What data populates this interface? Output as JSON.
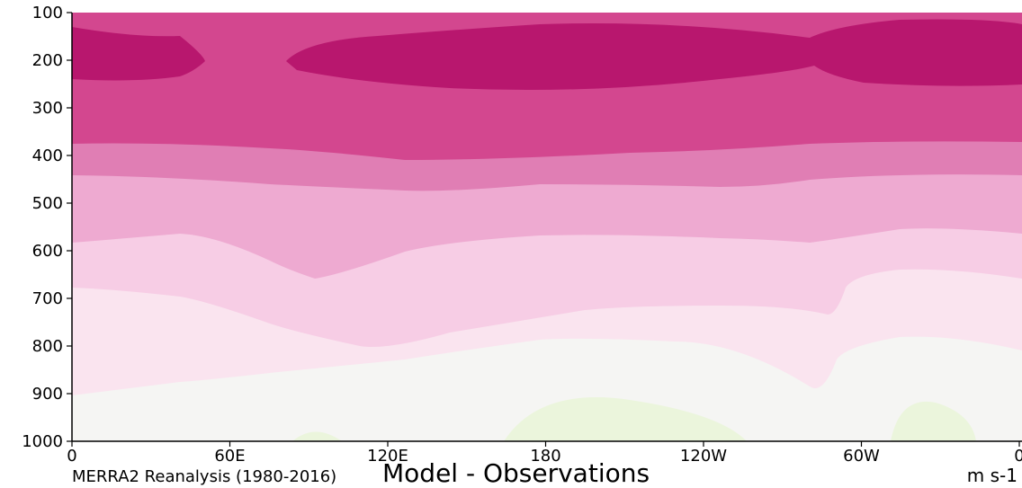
{
  "chart_data": {
    "type": "contour",
    "title": "Model - Observations",
    "subtitle": "MERRA2 Reanalysis (1980-2016)",
    "units": "m s-1",
    "xlim": [
      0,
      360
    ],
    "xticks": [
      0,
      {
        "value": 60,
        "label": "60E"
      },
      {
        "value": 120,
        "label": "120E"
      },
      180,
      {
        "value": 240,
        "label": "120W"
      },
      {
        "value": 300,
        "label": "60W"
      },
      {
        "value": 360,
        "label": "0"
      }
    ],
    "ylim": [
      1000,
      100
    ],
    "yticks": [
      100,
      200,
      300,
      400,
      500,
      600,
      700,
      800,
      900,
      1000
    ]
  }
}
